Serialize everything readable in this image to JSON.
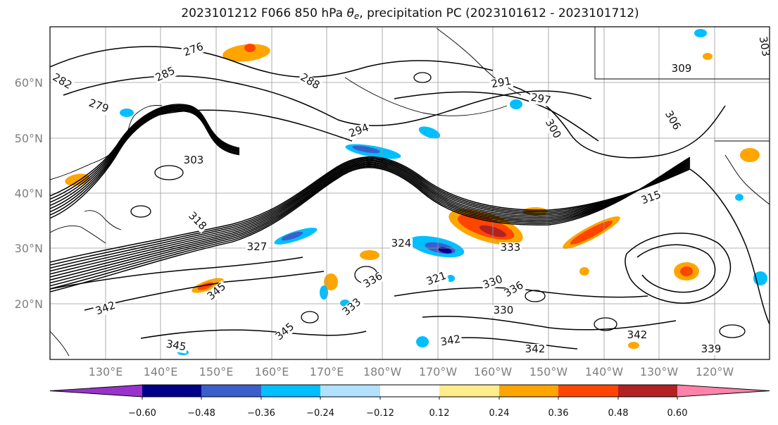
{
  "title": {
    "prefix": "2023101212 F066 850 hPa ",
    "theta": "θ",
    "subscript": "e",
    "suffix": ", precipitation PC (2023101612 - 2023101712)"
  },
  "lat_labels": [
    "60°N",
    "50°N",
    "40°N",
    "30°N",
    "20°N"
  ],
  "lon_labels": [
    "130°E",
    "140°E",
    "150°E",
    "160°E",
    "170°E",
    "180°W",
    "170°W",
    "160°W",
    "150°W",
    "140°W",
    "130°W",
    "120°W"
  ],
  "colorbar": {
    "tick_labels": [
      "−0.60",
      "−0.48",
      "−0.36",
      "−0.24",
      "−0.12",
      "0.12",
      "0.24",
      "0.36",
      "0.48",
      "0.60"
    ],
    "colors": [
      "#9932cc",
      "#00008b",
      "#3a5fcd",
      "#00bfff",
      "#b0e2ff",
      "#ffffff",
      "#ffec8b",
      "#ffa500",
      "#ff4500",
      "#b22222",
      "#ff82ab"
    ]
  },
  "contour_labels": [
    "276",
    "279",
    "282",
    "285",
    "288",
    "291",
    "294",
    "297",
    "300",
    "303",
    "306",
    "309",
    "312",
    "315",
    "318",
    "321",
    "324",
    "327",
    "330",
    "333",
    "336",
    "339",
    "342",
    "345"
  ],
  "map_colors": {
    "contour": "#000000",
    "grid": "#9a9a9a",
    "coast": "#000000",
    "frame": "#000000"
  }
}
